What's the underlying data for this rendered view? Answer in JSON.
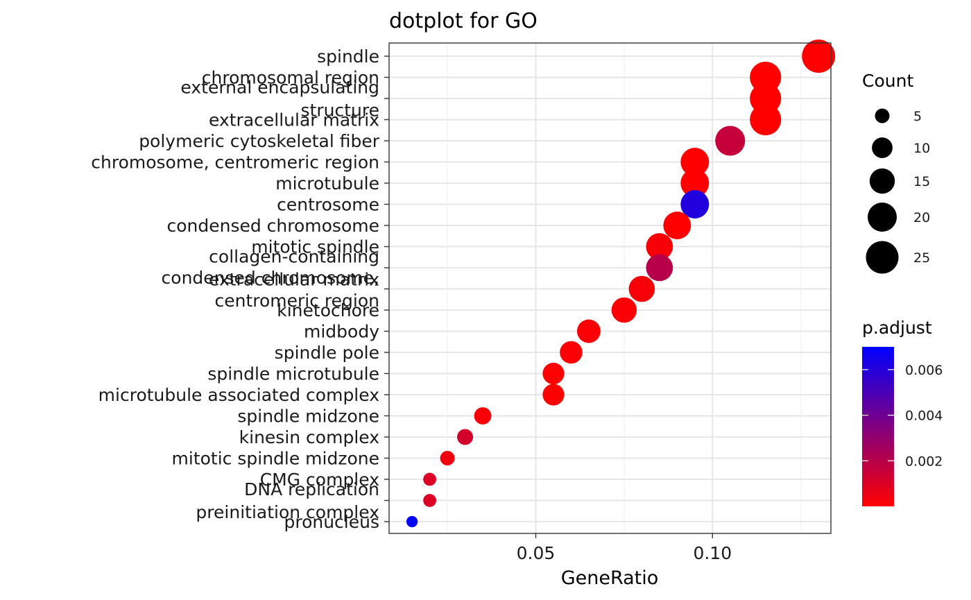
{
  "chart_data": {
    "type": "scatter",
    "title": "dotplot for GO",
    "xlabel": "GeneRatio",
    "xlim": [
      0.0085,
      0.1335
    ],
    "xticks": [
      0.05,
      0.1
    ],
    "xtick_labels": [
      "0.05",
      "0.10"
    ],
    "grid": true,
    "legend_position": "right",
    "categories": [
      {
        "label": [
          "spindle"
        ]
      },
      {
        "label": [
          "chromosomal region"
        ]
      },
      {
        "label": [
          "external encapsulating",
          "structure"
        ]
      },
      {
        "label": [
          "extracellular matrix"
        ]
      },
      {
        "label": [
          "polymeric cytoskeletal fiber"
        ]
      },
      {
        "label": [
          "chromosome, centromeric region"
        ]
      },
      {
        "label": [
          "microtubule"
        ]
      },
      {
        "label": [
          "centrosome"
        ]
      },
      {
        "label": [
          "condensed chromosome"
        ]
      },
      {
        "label": [
          "mitotic spindle"
        ]
      },
      {
        "label": [
          "collagen-containing",
          "extracellular matrix"
        ]
      },
      {
        "label": [
          "condensed chromosome,",
          "centromeric region"
        ]
      },
      {
        "label": [
          "kinetochore"
        ]
      },
      {
        "label": [
          "midbody"
        ]
      },
      {
        "label": [
          "spindle pole"
        ]
      },
      {
        "label": [
          "spindle microtubule"
        ]
      },
      {
        "label": [
          "microtubule associated complex"
        ]
      },
      {
        "label": [
          "spindle midzone"
        ]
      },
      {
        "label": [
          "kinesin complex"
        ]
      },
      {
        "label": [
          "mitotic spindle midzone"
        ]
      },
      {
        "label": [
          "CMG complex"
        ]
      },
      {
        "label": [
          "DNA replication",
          "preinitiation complex"
        ]
      },
      {
        "label": [
          "pronucleus"
        ]
      }
    ],
    "points": [
      {
        "x": 0.13,
        "count": 26,
        "p_adjust": 0.0
      },
      {
        "x": 0.115,
        "count": 23,
        "p_adjust": 0.0
      },
      {
        "x": 0.115,
        "count": 23,
        "p_adjust": 0.0
      },
      {
        "x": 0.115,
        "count": 23,
        "p_adjust": 0.0
      },
      {
        "x": 0.105,
        "count": 21,
        "p_adjust": 0.0016
      },
      {
        "x": 0.095,
        "count": 19,
        "p_adjust": 0.0
      },
      {
        "x": 0.095,
        "count": 19,
        "p_adjust": 0.0
      },
      {
        "x": 0.095,
        "count": 19,
        "p_adjust": 0.0061
      },
      {
        "x": 0.09,
        "count": 18,
        "p_adjust": 0.0
      },
      {
        "x": 0.085,
        "count": 17,
        "p_adjust": 0.0002
      },
      {
        "x": 0.085,
        "count": 17,
        "p_adjust": 0.002
      },
      {
        "x": 0.08,
        "count": 16,
        "p_adjust": 0.0002
      },
      {
        "x": 0.075,
        "count": 15,
        "p_adjust": 0.0001
      },
      {
        "x": 0.065,
        "count": 13,
        "p_adjust": 0.0001
      },
      {
        "x": 0.06,
        "count": 12,
        "p_adjust": 0.0001
      },
      {
        "x": 0.055,
        "count": 11,
        "p_adjust": 0.0
      },
      {
        "x": 0.055,
        "count": 11,
        "p_adjust": 0.0
      },
      {
        "x": 0.035,
        "count": 7,
        "p_adjust": 0.0002
      },
      {
        "x": 0.03,
        "count": 6,
        "p_adjust": 0.0012
      },
      {
        "x": 0.025,
        "count": 5,
        "p_adjust": 0.0004
      },
      {
        "x": 0.02,
        "count": 4,
        "p_adjust": 0.001
      },
      {
        "x": 0.02,
        "count": 4,
        "p_adjust": 0.001
      },
      {
        "x": 0.015,
        "count": 3,
        "p_adjust": 0.007
      }
    ],
    "size_legend": {
      "title": "Count",
      "items": [
        {
          "label": "5",
          "value": 5
        },
        {
          "label": "10",
          "value": 10
        },
        {
          "label": "15",
          "value": 15
        },
        {
          "label": "20",
          "value": 20
        },
        {
          "label": "25",
          "value": 25
        }
      ]
    },
    "color_legend": {
      "title": "p.adjust",
      "range": [
        0.0,
        0.007
      ],
      "low_color": "#FF0000",
      "high_color": "#0000FF",
      "ticks": [
        {
          "label": "0.006",
          "value": 0.006
        },
        {
          "label": "0.004",
          "value": 0.004
        },
        {
          "label": "0.002",
          "value": 0.002
        }
      ]
    }
  }
}
